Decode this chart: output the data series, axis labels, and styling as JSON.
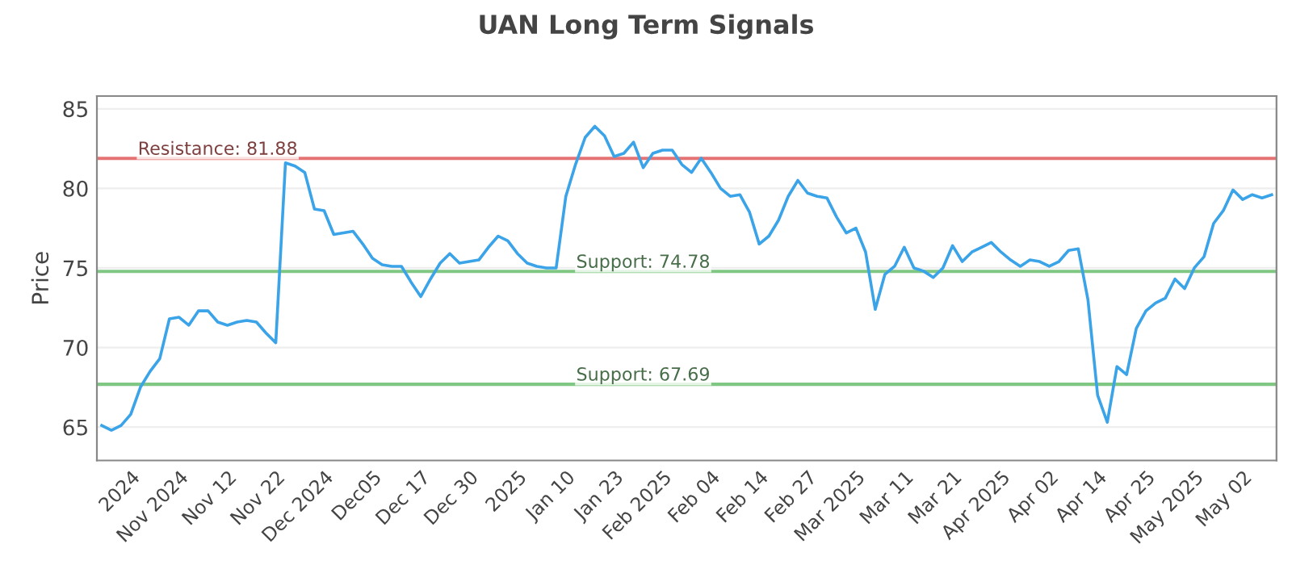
{
  "chart_data": {
    "type": "line",
    "title": "UAN Long Term Signals",
    "ylabel": "Price",
    "categories": [
      null,
      null,
      null,
      "2024",
      null,
      null,
      null,
      null,
      "Nov 2024",
      null,
      null,
      null,
      null,
      "Nov 12",
      null,
      null,
      null,
      null,
      "Nov 22",
      null,
      null,
      null,
      null,
      "Dec 2024",
      null,
      null,
      null,
      null,
      "Dec05",
      null,
      null,
      null,
      null,
      "Dec 17",
      null,
      null,
      null,
      null,
      "Dec 30",
      null,
      null,
      null,
      null,
      "2025",
      null,
      null,
      null,
      null,
      "Jan 10",
      null,
      null,
      null,
      null,
      "Jan 23",
      null,
      null,
      null,
      null,
      "Feb 2025",
      null,
      null,
      null,
      null,
      "Feb 04",
      null,
      null,
      null,
      null,
      "Feb 14",
      null,
      null,
      null,
      null,
      "Feb 27",
      null,
      null,
      null,
      null,
      "Mar 2025",
      null,
      null,
      null,
      null,
      "Mar 11",
      null,
      null,
      null,
      null,
      "Mar 21",
      null,
      null,
      null,
      null,
      "Apr 2025",
      null,
      null,
      null,
      null,
      "Apr 02",
      null,
      null,
      null,
      null,
      "Apr 14",
      null,
      null,
      null,
      null,
      "Apr 25",
      null,
      null,
      null,
      null,
      "May 2025",
      null,
      null,
      null,
      null,
      "May 02",
      null,
      null,
      null
    ],
    "series": [
      {
        "color": "#3ba3e8",
        "values": [
          65.1,
          64.8,
          65.1,
          65.8,
          67.5,
          68.5,
          69.3,
          71.8,
          71.9,
          71.4,
          72.3,
          72.3,
          71.6,
          71.4,
          71.6,
          71.7,
          71.6,
          70.9,
          70.3,
          81.6,
          81.4,
          81.0,
          78.7,
          78.6,
          77.1,
          77.2,
          77.3,
          76.5,
          75.6,
          75.2,
          75.1,
          75.1,
          74.1,
          73.2,
          74.3,
          75.3,
          75.9,
          75.3,
          75.4,
          75.5,
          76.3,
          77.0,
          76.7,
          75.9,
          75.3,
          75.1,
          75.0,
          75.0,
          79.5,
          81.5,
          83.2,
          83.9,
          83.3,
          82.0,
          82.2,
          82.9,
          81.3,
          82.2,
          82.4,
          82.4,
          81.5,
          81.0,
          81.9,
          81.0,
          80.0,
          79.5,
          79.6,
          78.5,
          76.5,
          77.0,
          78.0,
          79.5,
          80.5,
          79.7,
          79.5,
          79.4,
          78.2,
          77.2,
          77.5,
          76.0,
          72.4,
          74.6,
          75.1,
          76.3,
          75.0,
          74.8,
          74.4,
          75.0,
          76.4,
          75.4,
          76.0,
          76.3,
          76.6,
          76.0,
          75.5,
          75.1,
          75.5,
          75.4,
          75.1,
          75.4,
          76.1,
          76.2,
          73.0,
          67.0,
          65.3,
          68.8,
          68.3,
          71.2,
          72.3,
          72.8,
          73.1,
          74.3,
          73.7,
          75.0,
          75.7,
          77.8,
          78.6,
          79.9,
          79.3,
          79.6,
          79.4,
          79.6
        ]
      }
    ],
    "ylim": [
      62.9,
      85.8
    ],
    "yticks": [
      65,
      70,
      75,
      80,
      85
    ],
    "grid": "y",
    "legend": false,
    "ref_lines": [
      {
        "axis": "y",
        "value": 81.88,
        "label": "Resistance: 81.88",
        "color": "#e57373"
      },
      {
        "axis": "y",
        "value": 74.78,
        "label": "Support: 74.78",
        "color": "#81c784"
      },
      {
        "axis": "y",
        "value": 67.69,
        "label": "Support: 67.69",
        "color": "#81c784"
      }
    ]
  }
}
